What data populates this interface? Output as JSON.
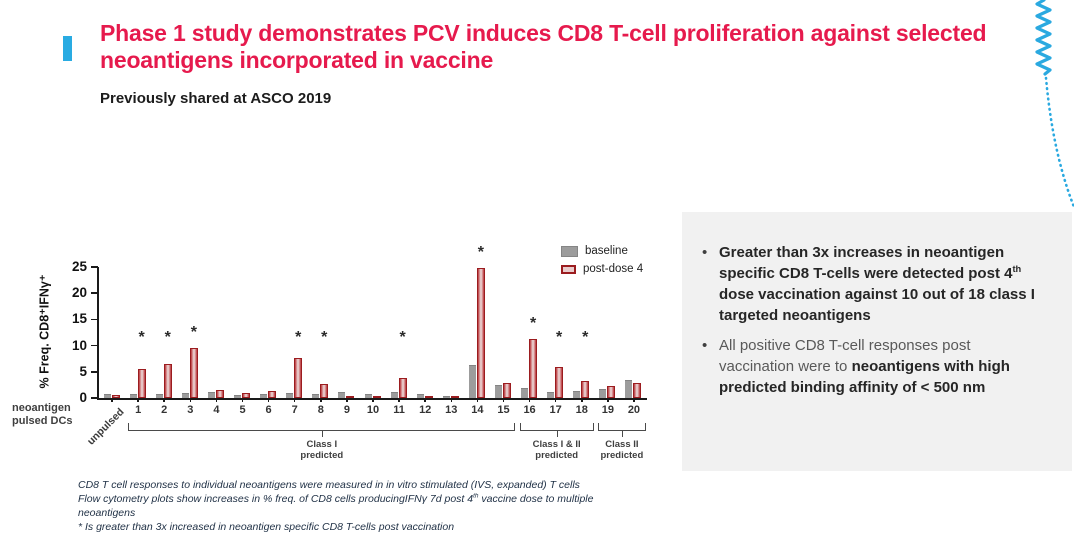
{
  "slide": {
    "title": "Phase 1 study demonstrates PCV induces CD8 T-cell proliferation against selected neoantigens incorporated in vaccine",
    "subtitle": "Previously shared at ASCO 2019"
  },
  "colors": {
    "title_pink": "#e61a4d",
    "accent_blue": "#29abe2",
    "baseline_gray": "#9c9c9c",
    "postdose_red": "#9b1c1f",
    "box_gray": "#f1f1f1"
  },
  "chart_data": {
    "type": "bar",
    "title": "",
    "ylabel": "% Freq. CD8⁺IFNγ⁺",
    "xlabel": "",
    "ylim": [
      0,
      25
    ],
    "yticks": [
      0,
      5,
      10,
      15,
      20,
      25
    ],
    "grid": false,
    "legend_position": "top-right",
    "categories": [
      "unpulsed",
      "1",
      "2",
      "3",
      "4",
      "5",
      "6",
      "7",
      "8",
      "9",
      "10",
      "11",
      "12",
      "13",
      "14",
      "15",
      "16",
      "17",
      "18",
      "19",
      "20"
    ],
    "series": [
      {
        "name": "baseline",
        "values": [
          0.5,
          0.5,
          0.5,
          0.8,
          0.9,
          0.3,
          0.5,
          0.8,
          0.6,
          0.9,
          0.5,
          0.9,
          0.6,
          0.05,
          6.2,
          2.3,
          1.8,
          1.0,
          1.1,
          1.6,
          3.2
        ]
      },
      {
        "name": "post-dose 4",
        "values": [
          0.5,
          5.5,
          6.4,
          9.5,
          1.5,
          1.0,
          1.3,
          7.7,
          2.6,
          0.3,
          0.15,
          3.8,
          0.25,
          0.3,
          24.8,
          2.8,
          11.2,
          6.0,
          3.2,
          2.3,
          2.8
        ]
      }
    ],
    "starred_categories": [
      "1",
      "2",
      "3",
      "7",
      "8",
      "11",
      "14",
      "16",
      "17",
      "18"
    ],
    "star_symbol": "*",
    "x_axis_caption": "neoantigen\npulsed DCs",
    "group_brackets": [
      {
        "from": "1",
        "to": "15",
        "line1": "Class I",
        "line2": "predicted"
      },
      {
        "from": "16",
        "to": "18",
        "line1": "Class I & II",
        "line2": "predicted"
      },
      {
        "from": "19",
        "to": "20",
        "line1": "Class II",
        "line2": "predicted"
      }
    ]
  },
  "insight_box": {
    "bullets": [
      {
        "segments": [
          {
            "text": "Greater than 3x increases in neoantigen specific CD8 T-cells were detected post 4",
            "bold": true
          },
          {
            "text": "th",
            "bold": true,
            "sup": true
          },
          {
            "text": " dose vaccination against 10 out of 18 class I targeted neoantigens",
            "bold": true
          }
        ]
      },
      {
        "segments": [
          {
            "text": "All positive CD8 T-cell responses post vaccination were to ",
            "bold": false
          },
          {
            "text": "neoantigens with high predicted binding affinity of < 500 nm",
            "bold": true
          }
        ]
      }
    ]
  },
  "footnotes": [
    {
      "segments": [
        {
          "text": "CD8 T cell responses to individual neoantigens were measured in in vitro stimulated (IVS, expanded) T cells"
        }
      ]
    },
    {
      "segments": [
        {
          "text": "Flow cytometry plots show increases in % freq. of CD8 cells producingIFNγ 7d post 4"
        },
        {
          "text": "th",
          "sup": true
        },
        {
          "text": " vaccine dose to multiple neoantigens"
        }
      ]
    },
    {
      "segments": [
        {
          "text": "* Is greater than 3x increased in neoantigen specific CD8 T-cells post vaccination"
        }
      ]
    }
  ]
}
